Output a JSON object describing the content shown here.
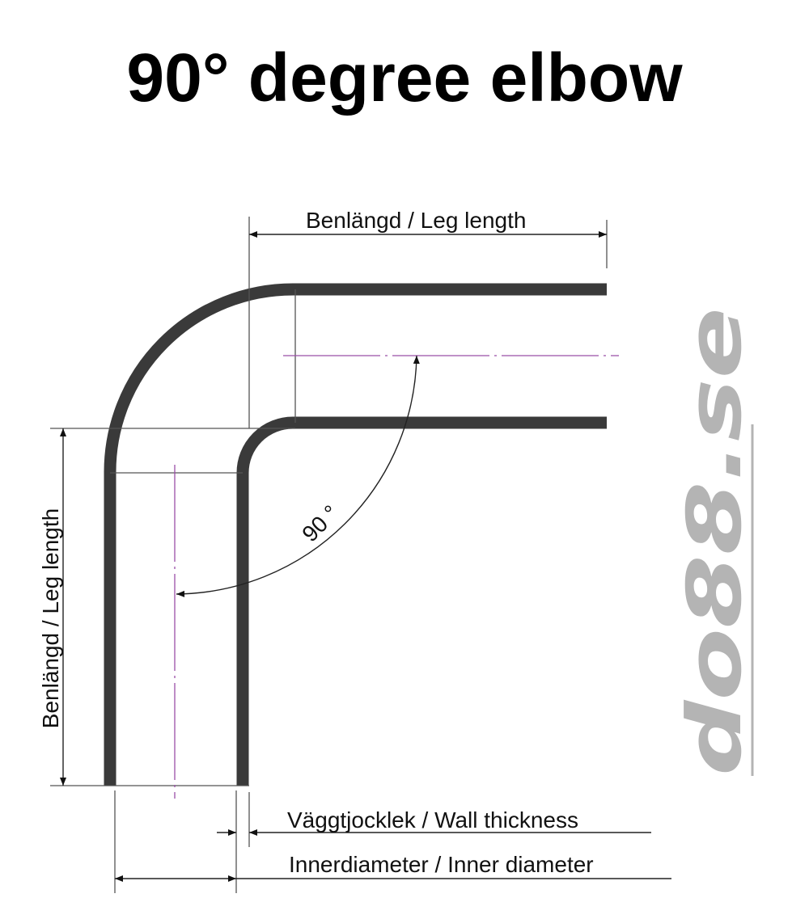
{
  "title": "90° degree elbow",
  "labels": {
    "top_leg_length": "Benlängd / Leg length",
    "side_leg_length": "Benlängd / Leg length",
    "angle": "90 °",
    "wall_thickness": "Väggtjocklek / Wall thickness",
    "inner_diameter": "Innerdiameter / Inner diameter"
  },
  "logo": {
    "text": "do88.se",
    "color": "#b4b4b4"
  },
  "colors": {
    "pipe": "#3a3a3a",
    "centerline": "#9a4fa8"
  }
}
